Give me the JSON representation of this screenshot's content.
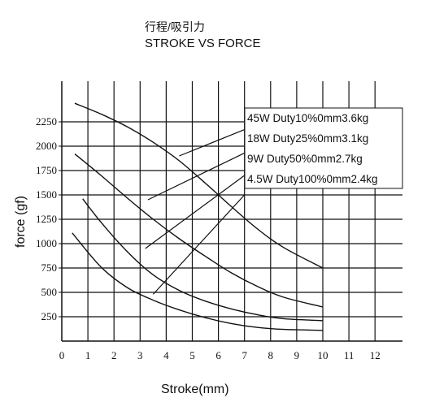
{
  "chart_data": {
    "type": "line",
    "title": "行程/吸引力",
    "subtitle": "STROKE VS FORCE",
    "xlabel": "Stroke(mm)",
    "ylabel": "force (gf)",
    "xlim": [
      0,
      13
    ],
    "ylim": [
      0,
      2600
    ],
    "x_ticks": [
      0,
      1,
      2,
      3,
      4,
      5,
      6,
      7,
      8,
      9,
      10,
      11,
      12
    ],
    "y_ticks": [
      250,
      500,
      750,
      1000,
      1250,
      1500,
      1750,
      2000,
      2250
    ],
    "grid": true,
    "legend_position": "top-right",
    "series": [
      {
        "name": "45W Duty10%0mm3.6kg",
        "x": [
          0.5,
          1.5,
          2.5,
          3.5,
          4.5,
          5.5,
          6.5,
          7.5,
          8.5,
          10
        ],
        "y": [
          2440,
          2330,
          2200,
          2040,
          1850,
          1620,
          1380,
          1150,
          960,
          750
        ]
      },
      {
        "name": "18W Duty25%0mm3.1kg",
        "x": [
          0.5,
          1.5,
          2.5,
          3.5,
          4.5,
          5.5,
          6.5,
          7.5,
          8.5,
          10
        ],
        "y": [
          1920,
          1700,
          1470,
          1250,
          1050,
          870,
          700,
          560,
          450,
          350
        ]
      },
      {
        "name": "9W Duty50%0mm2.7kg",
        "x": [
          0.8,
          1.5,
          2.5,
          3.5,
          4.5,
          5.5,
          6.5,
          7.5,
          8.5,
          10
        ],
        "y": [
          1460,
          1220,
          920,
          680,
          520,
          410,
          330,
          270,
          230,
          210
        ]
      },
      {
        "name": "4.5W Duty100%0mm2.4kg",
        "x": [
          0.4,
          1.5,
          2.5,
          3.5,
          4.5,
          5.5,
          6.5,
          7.5,
          8.5,
          10
        ],
        "y": [
          1110,
          760,
          550,
          420,
          320,
          240,
          180,
          140,
          120,
          110
        ]
      }
    ],
    "leader_lines": [
      {
        "from": [
          4.5,
          1900
        ],
        "to": [
          7.0,
          2170
        ]
      },
      {
        "from": [
          3.3,
          1450
        ],
        "to": [
          7.0,
          1930
        ]
      },
      {
        "from": [
          3.2,
          950
        ],
        "to": [
          7.0,
          1700
        ]
      },
      {
        "from": [
          3.5,
          480
        ],
        "to": [
          7.0,
          1500
        ]
      }
    ]
  }
}
